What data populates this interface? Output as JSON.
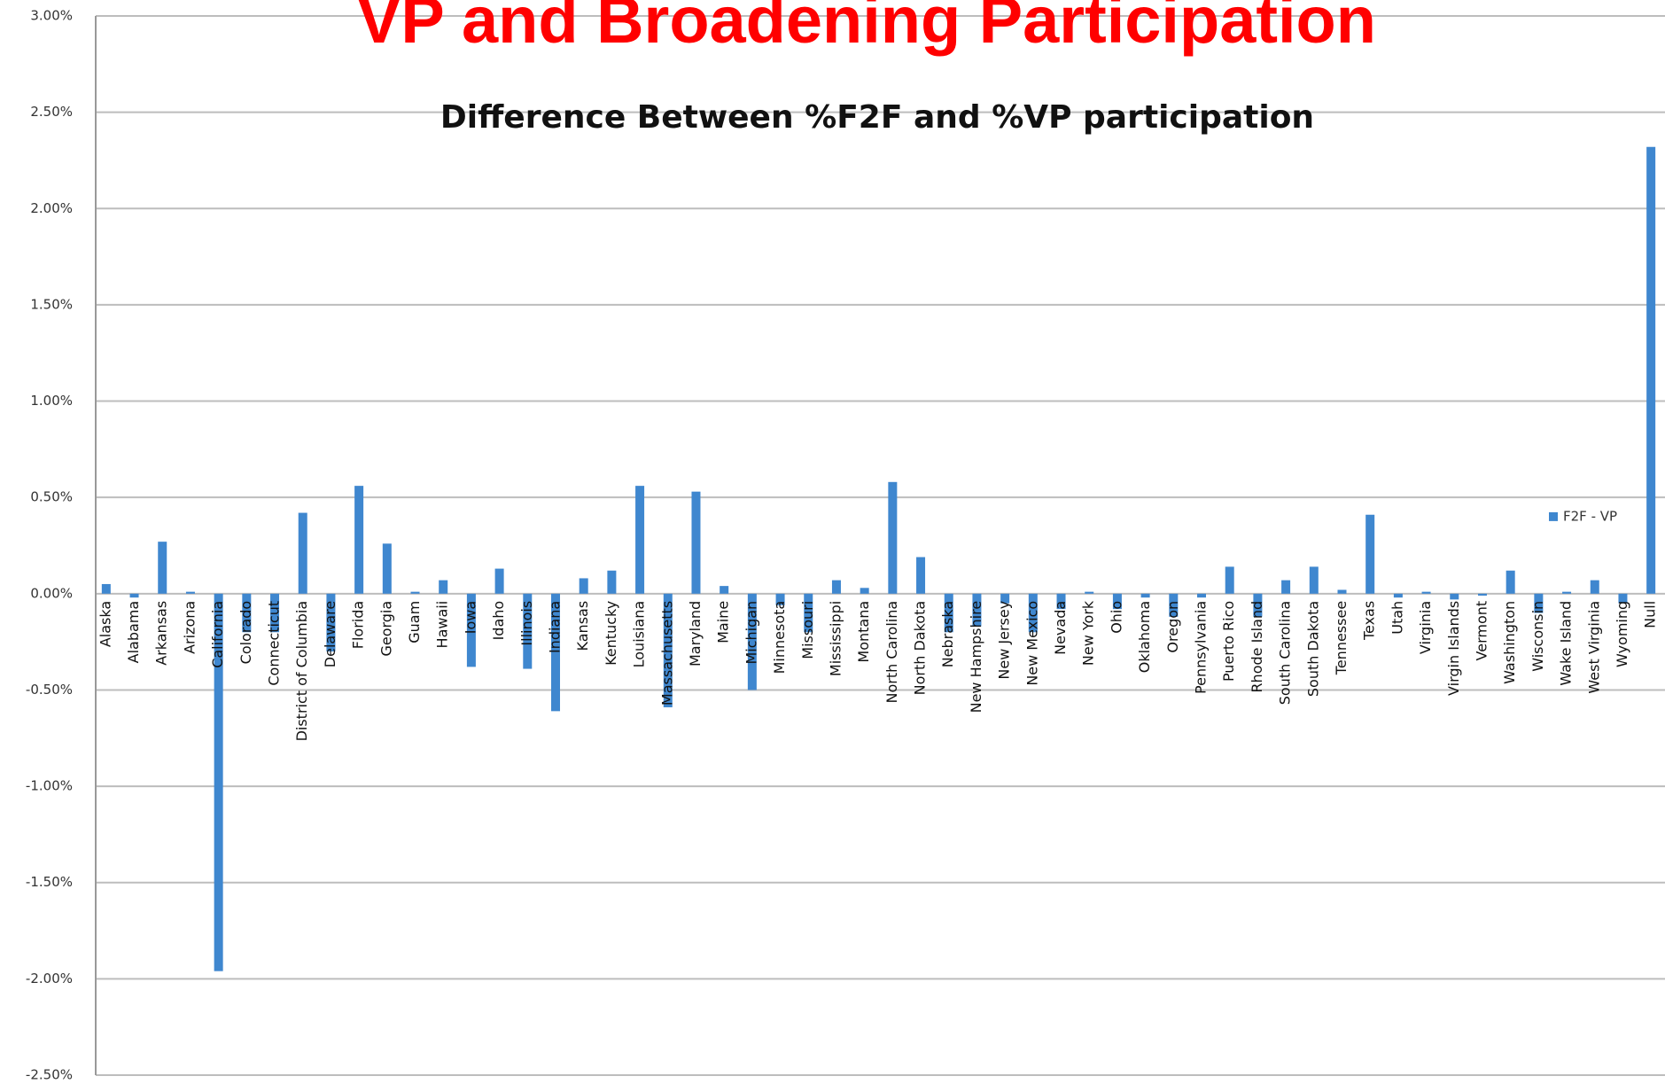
{
  "header": {
    "title": "VP and Broadening Participation"
  },
  "chart_data": {
    "type": "bar",
    "title": "Difference Between %F2F and %VP participation",
    "categories": [
      "Alaska",
      "Alabama",
      "Arkansas",
      "Arizona",
      "California",
      "Colorado",
      "Connecticut",
      "District of Columbia",
      "Delaware",
      "Florida",
      "Georgia",
      "Guam",
      "Hawaii",
      "Iowa",
      "Idaho",
      "Illinois",
      "Indiana",
      "Kansas",
      "Kentucky",
      "Louisiana",
      "Massachusetts",
      "Maryland",
      "Maine",
      "Michigan",
      "Minnesota",
      "Missouri",
      "Mississippi",
      "Montana",
      "North Carolina",
      "North Dakota",
      "Nebraska",
      "New Hampshire",
      "New Jersey",
      "New Mexico",
      "Nevada",
      "New York",
      "Ohio",
      "Oklahoma",
      "Oregon",
      "Pennsylvania",
      "Puerto Rico",
      "Rhode Island",
      "South Carolina",
      "South Dakota",
      "Tennessee",
      "Texas",
      "Utah",
      "Virginia",
      "Virgin Islands",
      "Vermont",
      "Washington",
      "Wisconsin",
      "Wake Island",
      "West Virginia",
      "Wyoming",
      "Null"
    ],
    "series": [
      {
        "name": "F2F - VP",
        "color": "#3f87cf",
        "values": [
          0.05,
          -0.02,
          0.27,
          0.01,
          -1.96,
          -0.2,
          -0.2,
          0.42,
          -0.3,
          0.56,
          0.26,
          0.01,
          0.07,
          -0.38,
          0.13,
          -0.39,
          -0.61,
          0.08,
          0.12,
          0.56,
          -0.59,
          0.53,
          0.04,
          -0.5,
          -0.06,
          -0.2,
          0.07,
          0.03,
          0.58,
          0.19,
          -0.2,
          -0.17,
          -0.05,
          -0.2,
          -0.08,
          0.01,
          -0.08,
          -0.02,
          -0.12,
          -0.02,
          0.14,
          -0.12,
          0.07,
          0.14,
          0.02,
          0.41,
          -0.02,
          0.01,
          -0.03,
          -0.01,
          0.12,
          -0.1,
          0.01,
          0.07,
          -0.05,
          2.32
        ]
      }
    ],
    "ylim": [
      -2.5,
      3
    ],
    "yticks": [
      {
        "value": -2.5,
        "label": "-2.50%"
      },
      {
        "value": -2,
        "label": "-2.00%"
      },
      {
        "value": -1.5,
        "label": "-1.50%"
      },
      {
        "value": -1,
        "label": "-1.00%"
      },
      {
        "value": -0.5,
        "label": "-0.50%"
      },
      {
        "value": 0,
        "label": "0.00%"
      },
      {
        "value": 0.5,
        "label": "0.50%"
      },
      {
        "value": 1,
        "label": "1.00%"
      },
      {
        "value": 1.5,
        "label": "1.50%"
      },
      {
        "value": 2,
        "label": "2.00%"
      },
      {
        "value": 2.5,
        "label": "2.50%"
      },
      {
        "value": 3,
        "label": "3.00%"
      }
    ],
    "grid": true,
    "legend": "right"
  }
}
